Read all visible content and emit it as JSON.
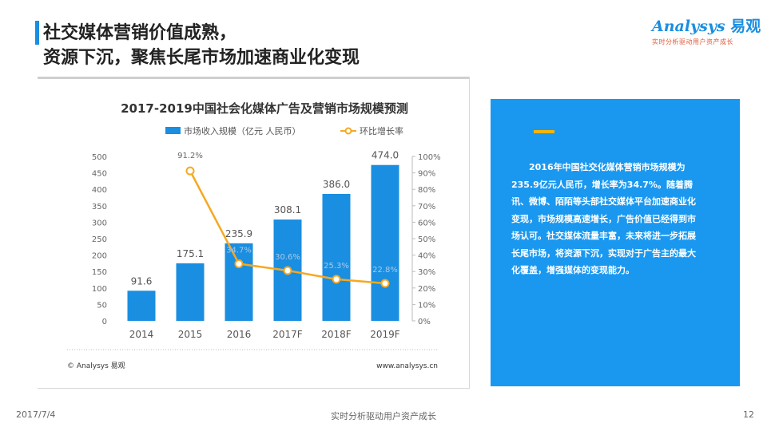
{
  "header": {
    "title_line1": "社交媒体营销价值成熟，",
    "title_line2": "资源下沉，聚焦长尾市场加速商业化变现"
  },
  "logo": {
    "brand": "Analysys",
    "brand_cn": "易观",
    "tagline": "实时分析驱动用户资产成长"
  },
  "chart_data": {
    "type": "bar",
    "title": "2017-2019中国社会化媒体广告及营销市场规模预测",
    "categories": [
      "2014",
      "2015",
      "2016",
      "2017F",
      "2018F",
      "2019F"
    ],
    "series": [
      {
        "name": "市场收入规模（亿元 人民币）",
        "type": "bar",
        "axis": "left",
        "color": "#1a8ee0",
        "values": [
          91.6,
          175.1,
          235.9,
          308.1,
          386.0,
          474.0
        ],
        "labels": [
          "91.6",
          "175.1",
          "235.9",
          "308.1",
          "386.0",
          "474.0"
        ]
      },
      {
        "name": "环比增长率",
        "type": "line",
        "axis": "right",
        "color": "#f6a821",
        "values": [
          null,
          91.2,
          34.7,
          30.6,
          25.3,
          22.8
        ],
        "labels": [
          "",
          "91.2%",
          "34.7%",
          "30.6%",
          "25.3%",
          "22.8%"
        ]
      }
    ],
    "y_left": {
      "min": 0,
      "max": 500,
      "step": 50,
      "ticks": [
        "0",
        "50",
        "100",
        "150",
        "200",
        "250",
        "300",
        "350",
        "400",
        "450",
        "500"
      ]
    },
    "y_right": {
      "min": 0,
      "max": 100,
      "step": 10,
      "ticks": [
        "0%",
        "10%",
        "20%",
        "30%",
        "40%",
        "50%",
        "60%",
        "70%",
        "80%",
        "90%",
        "100%"
      ]
    },
    "source": "© Analysys 易观",
    "website": "www.analysys.cn"
  },
  "panel": {
    "text": "2016年中国社交化媒体营销市场规模为235.9亿元人民币，增长率为34.7%。随着腾讯、微博、陌陌等头部社交媒体平台加速商业化变现，市场规模高速增长，广告价值已经得到市场认可。社交媒体流量丰富，未来将进一步拓展长尾市场，将资源下沉，实现对于广告主的最大化覆盖，增强媒体的变现能力。"
  },
  "footer": {
    "date": "2017/7/4",
    "slogan": "实时分析驱动用户资产成长",
    "page": "12"
  },
  "colors": {
    "accent": "#1a8ee0",
    "panel": "#1a98f0",
    "line": "#f6a821",
    "dash": "#f6b40b"
  }
}
